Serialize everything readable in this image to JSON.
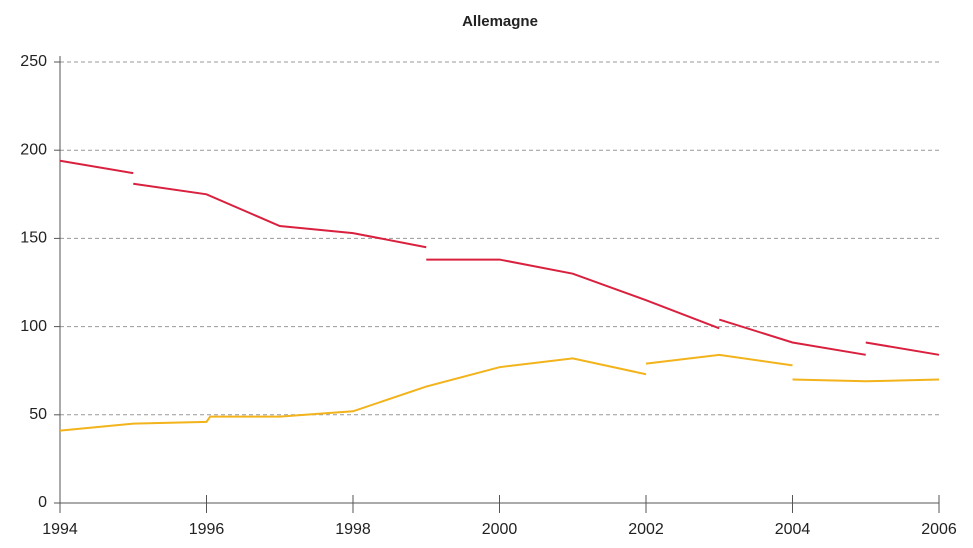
{
  "chart_data": {
    "type": "line",
    "title": "Allemagne",
    "xlim": [
      1994,
      2006
    ],
    "xticks": [
      1994,
      1996,
      1998,
      2000,
      2002,
      2004,
      2006
    ],
    "ylim": [
      0,
      250
    ],
    "yticks": [
      0,
      50,
      100,
      150,
      200,
      250
    ],
    "grid": true,
    "series": [
      {
        "color": "#d9213f",
        "x": [
          1994,
          1995,
          null,
          1995,
          1996,
          1997,
          1998,
          1999,
          null,
          1999,
          2000,
          2001,
          2002,
          2003,
          null,
          2003,
          2004,
          2005,
          null,
          2005,
          2006
        ],
        "values": [
          194,
          187,
          null,
          181,
          175,
          157,
          153,
          145,
          null,
          138,
          138,
          130,
          115,
          99,
          null,
          104,
          91,
          84,
          null,
          91,
          84
        ]
      },
      {
        "color": "#f2b31b",
        "x": [
          1994,
          1995,
          1996,
          1996.05,
          1997,
          1998,
          1999,
          2000,
          2001,
          2002,
          null,
          2002,
          2003,
          2004,
          null,
          2004,
          2005,
          2006
        ],
        "values": [
          41,
          45,
          46,
          49,
          49,
          52,
          66,
          77,
          82,
          73,
          null,
          79,
          84,
          78,
          null,
          70,
          69,
          70
        ]
      }
    ]
  }
}
